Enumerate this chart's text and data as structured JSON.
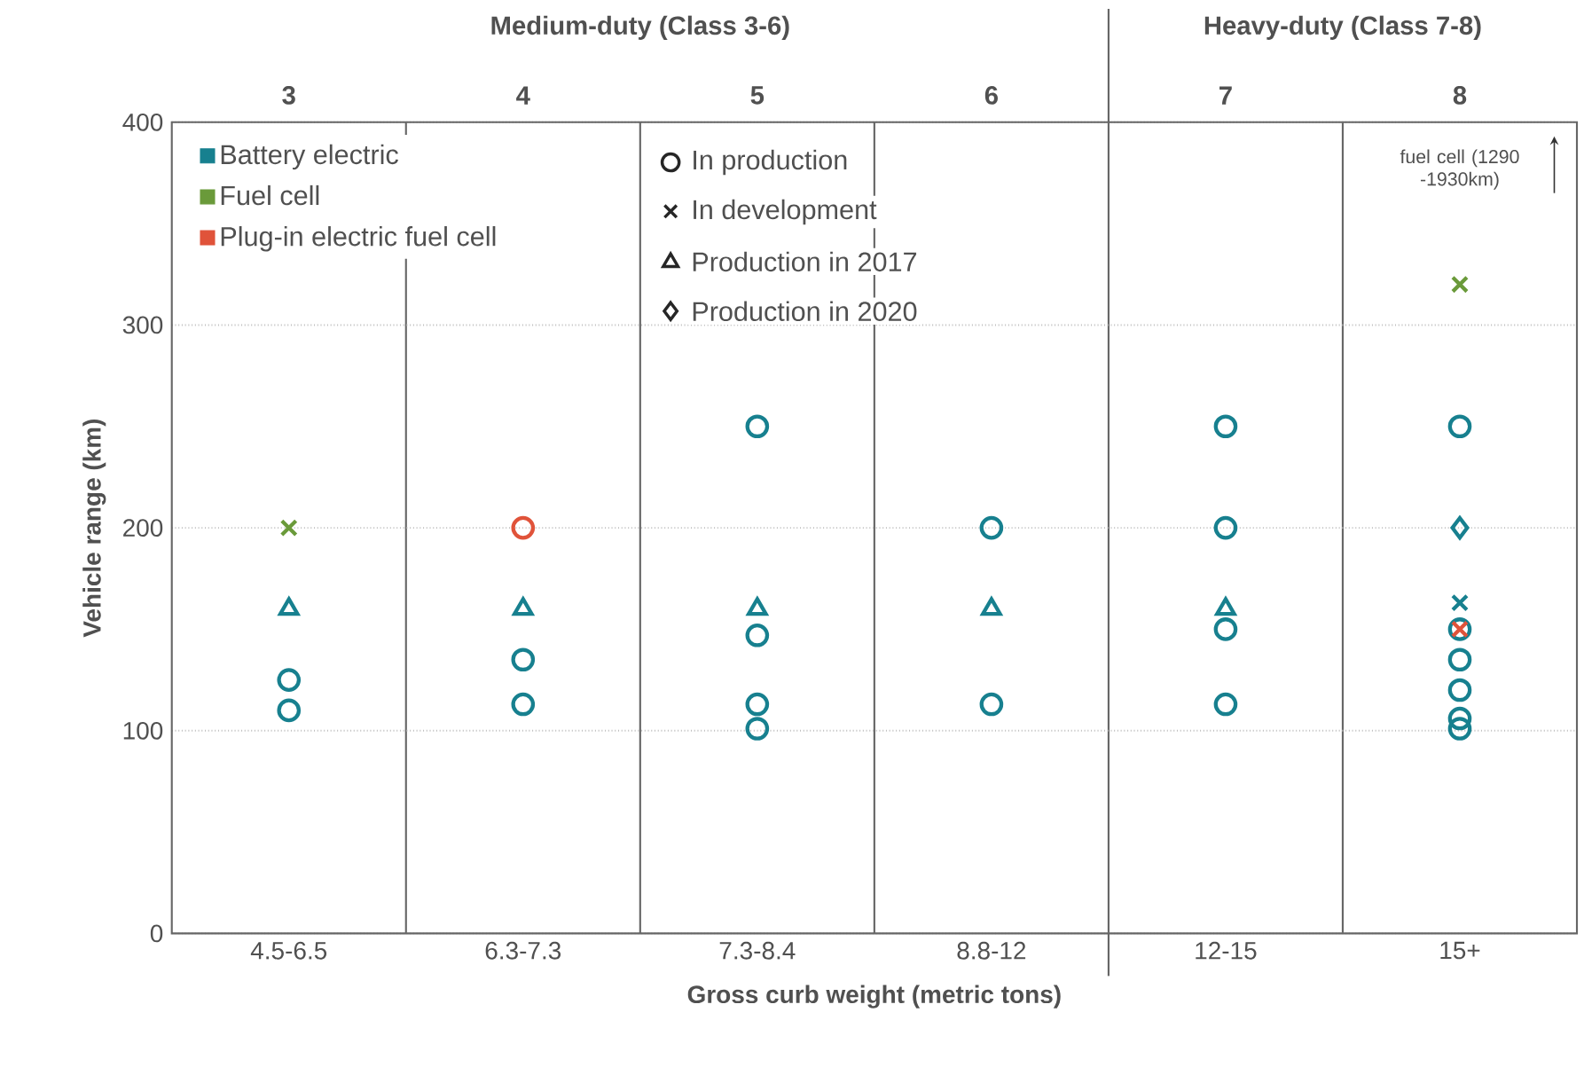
{
  "chart_data": {
    "type": "scatter",
    "xlabel": "Gross curb weight (metric tons)",
    "ylabel": "Vehicle range (km)",
    "categories": [
      "4.5-6.5",
      "6.3-7.3",
      "7.3-8.4",
      "8.8-12",
      "12-15",
      "15+"
    ],
    "ylim": [
      0,
      400
    ],
    "yticks": [
      0,
      100,
      200,
      300,
      400
    ],
    "x2lim": [
      2.5,
      8.5
    ],
    "x2ticks": [
      3,
      4,
      5,
      6,
      7,
      8
    ],
    "grid": "y",
    "legend": "top left",
    "annotations": [
      "Medium-duty (Class 3-6)",
      "Heavy-duty (Class 7-8)",
      "fuel cell (1290 -1930km)",
      "In production",
      "In development",
      "Production in 2017",
      "Production in 2020"
    ],
    "series": [
      {
        "name": "Battery electric",
        "color": "#17808f",
        "marker": "circle",
        "x": [
          "4.5-6.5",
          "4.5-6.5",
          "6.3-7.3",
          "6.3-7.3",
          "7.3-8.4",
          "7.3-8.4",
          "7.3-8.4",
          "7.3-8.4",
          "8.8-12",
          "8.8-12",
          "12-15",
          "12-15",
          "12-15",
          "12-15",
          "15+",
          "15+",
          "15+",
          "15+",
          "15+",
          "15+"
        ],
        "values": [
          125,
          110,
          135,
          113,
          250,
          147,
          113,
          101,
          200,
          113,
          250,
          200,
          150,
          113,
          250,
          150,
          135,
          120,
          106,
          101
        ]
      },
      {
        "color": "#17808f",
        "marker": "triangle",
        "x": [
          "4.5-6.5",
          "6.3-7.3",
          "7.3-8.4",
          "8.8-12",
          "12-15"
        ],
        "values": [
          160,
          160,
          160,
          160,
          160
        ]
      },
      {
        "color": "#17808f",
        "marker": "diamond",
        "x": [
          "15+"
        ],
        "values": [
          200
        ]
      },
      {
        "color": "#17808f",
        "marker": "cross",
        "x": [
          "15+"
        ],
        "values": [
          163
        ]
      },
      {
        "name": "Fuel cell",
        "color": "#6a9a3a",
        "marker": "cross",
        "x": [
          "4.5-6.5",
          "15+"
        ],
        "values": [
          200,
          320
        ]
      },
      {
        "name": "Plug-in electric fuel cell",
        "color": "#e0533a",
        "marker": "circle",
        "x": [
          "6.3-7.3"
        ],
        "values": [
          200
        ]
      },
      {
        "color": "#e0533a",
        "marker": "cross",
        "x": [
          "15+"
        ],
        "values": [
          150
        ]
      }
    ]
  }
}
